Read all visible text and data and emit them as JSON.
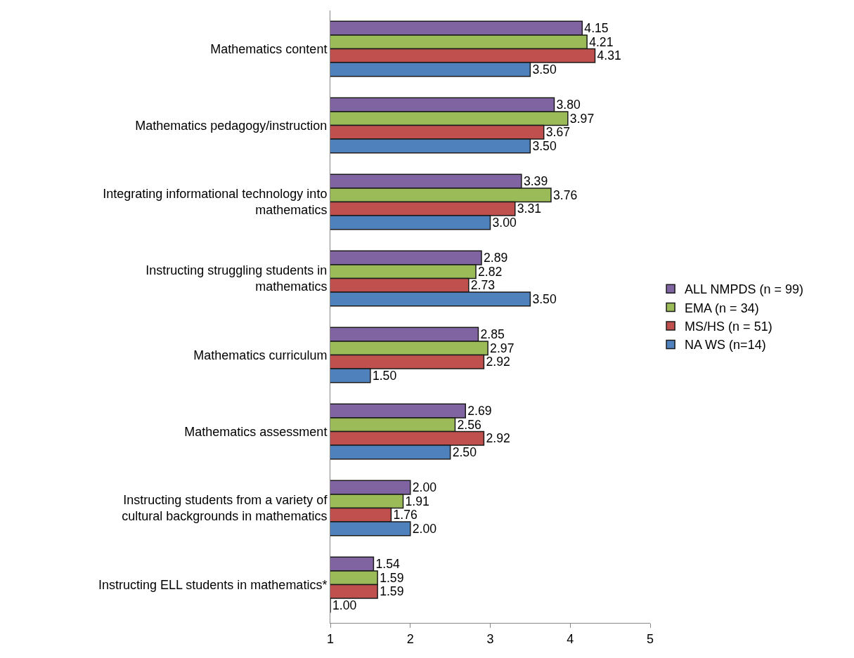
{
  "chart_data": {
    "type": "bar",
    "orientation": "horizontal",
    "categories": [
      "Mathematics content",
      "Mathematics pedagogy/instruction",
      "Integrating informational technology into mathematics",
      "Instructing struggling students in mathematics",
      "Mathematics curriculum",
      "Mathematics assessment",
      "Instructing students from a variety of cultural backgrounds in mathematics",
      "Instructing ELL students in mathematics*"
    ],
    "series": [
      {
        "name": "ALL NMPDS (n = 99)",
        "color": "#8064a2",
        "values": [
          4.15,
          3.8,
          3.39,
          2.89,
          2.85,
          2.69,
          2.0,
          1.54
        ],
        "value_labels": [
          "4.15",
          "3.80",
          "3.39",
          "2.89",
          "2.85",
          "2.69",
          "2.00",
          "1.54"
        ]
      },
      {
        "name": "EMA (n = 34)",
        "color": "#9bbb59",
        "values": [
          4.21,
          3.97,
          3.76,
          2.82,
          2.97,
          2.56,
          1.91,
          1.59
        ],
        "value_labels": [
          "4.21",
          "3.97",
          "3.76",
          "2.82",
          "2.97",
          "2.56",
          "1.91",
          "1.59"
        ]
      },
      {
        "name": "MS/HS (n = 51)",
        "color": "#c0504d",
        "values": [
          4.31,
          3.67,
          3.31,
          2.73,
          2.92,
          2.92,
          1.76,
          1.59
        ],
        "value_labels": [
          "4.31",
          "3.67",
          "3.31",
          "2.73",
          "2.92",
          "2.92",
          "1.76",
          "1.59"
        ]
      },
      {
        "name": "NA WS (n=14)",
        "color": "#4f81bd",
        "values": [
          3.5,
          3.5,
          3.0,
          3.5,
          1.5,
          2.5,
          2.0,
          1.0
        ],
        "value_labels": [
          "3.50",
          "3.50",
          "3.00",
          "3.50",
          "1.50",
          "2.50",
          "2.00",
          "1.00"
        ]
      }
    ],
    "xlim": [
      1,
      5
    ],
    "xticks": [
      1,
      2,
      3,
      4,
      5
    ],
    "grid": false,
    "legend": "right"
  }
}
